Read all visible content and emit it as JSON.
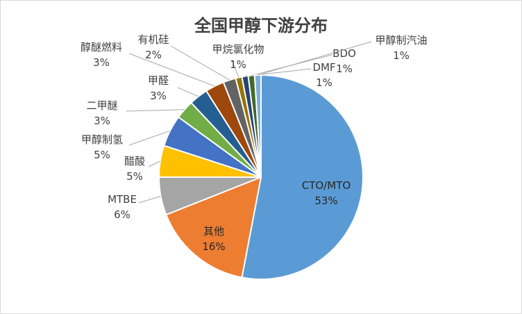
{
  "chart_data": {
    "type": "pie",
    "title": "全国甲醇下游分布",
    "slices": [
      {
        "label": "CTO/MTO",
        "value": 53,
        "display": "53%",
        "color": "#5b9bd5"
      },
      {
        "label": "其他",
        "value": 16,
        "display": "16%",
        "color": "#ed7d31"
      },
      {
        "label": "MTBE",
        "value": 6,
        "display": "6%",
        "color": "#a5a5a5"
      },
      {
        "label": "醋酸",
        "value": 5,
        "display": "5%",
        "color": "#ffc000"
      },
      {
        "label": "甲醇制氢",
        "value": 5,
        "display": "5%",
        "color": "#4472c4"
      },
      {
        "label": "二甲醚",
        "value": 3,
        "display": "3%",
        "color": "#70ad47"
      },
      {
        "label": "甲醛",
        "value": 3,
        "display": "3%",
        "color": "#255e91"
      },
      {
        "label": "醇醚燃料",
        "value": 3,
        "display": "3%",
        "color": "#9e480e"
      },
      {
        "label": "有机硅",
        "value": 2,
        "display": "2%",
        "color": "#636363"
      },
      {
        "label": "甲烷氯化物",
        "value": 1,
        "display": "1%",
        "color": "#997300"
      },
      {
        "label": "DMF",
        "value": 1,
        "display": "1%",
        "color": "#264478"
      },
      {
        "label": "BDO",
        "value": 1,
        "display": "1%",
        "color": "#43682b"
      },
      {
        "label": "甲醇制汽油",
        "value": 1,
        "display": "1%",
        "color": "#7cafdd"
      }
    ]
  }
}
